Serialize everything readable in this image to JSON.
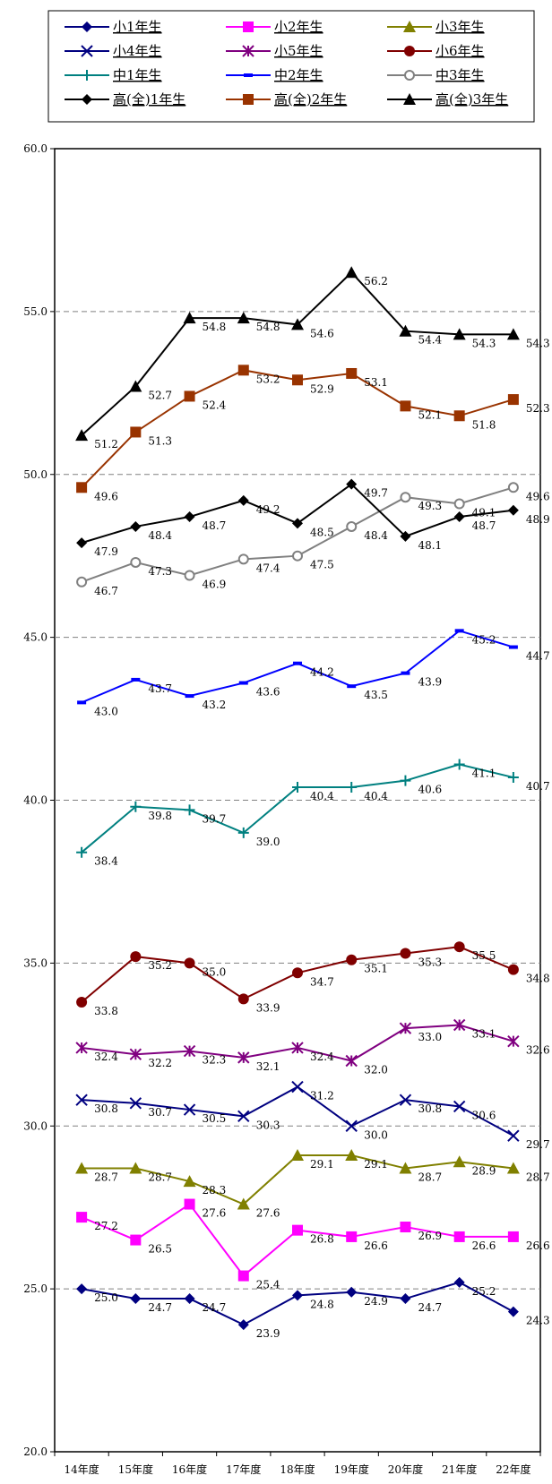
{
  "chart_data": {
    "type": "line",
    "categories": [
      "14年度",
      "15年度",
      "16年度",
      "17年度",
      "18年度",
      "19年度",
      "20年度",
      "21年度",
      "22年度"
    ],
    "ylim": [
      20.0,
      60.0
    ],
    "yticks": [
      "20.0",
      "25.0",
      "30.0",
      "35.0",
      "40.0",
      "45.0",
      "50.0",
      "55.0",
      "60.0"
    ],
    "grid": "dashed-horizontal",
    "legend_position": "top",
    "series": [
      {
        "name": "小1年生",
        "color": "#000080",
        "marker": "diamond",
        "values": [
          25.0,
          24.7,
          24.7,
          23.9,
          24.8,
          24.9,
          24.7,
          25.2,
          24.3
        ],
        "labels": [
          "25.0",
          "24.7",
          "24.7",
          "23.9",
          "24.8",
          "24.9",
          "24.7",
          "25.2",
          "24.3"
        ]
      },
      {
        "name": "小2年生",
        "color": "#ff00ff",
        "marker": "square",
        "values": [
          27.2,
          26.5,
          27.6,
          25.4,
          26.8,
          26.6,
          26.9,
          26.6,
          26.6
        ],
        "labels": [
          "27.2",
          "26.5",
          "27.6",
          "25.4",
          "26.8",
          "26.6",
          "26.9",
          "26.6",
          "26.6"
        ]
      },
      {
        "name": "小3年生",
        "color": "#808000",
        "marker": "triangle",
        "values": [
          28.7,
          28.7,
          28.3,
          27.6,
          29.1,
          29.1,
          28.7,
          28.9,
          28.7
        ],
        "labels": [
          "28.7",
          "28.7",
          "28.3",
          "27.6",
          "29.1",
          "29.1",
          "28.7",
          "28.9",
          "28.7"
        ]
      },
      {
        "name": "小4年生",
        "color": "#000080",
        "marker": "x",
        "values": [
          30.8,
          30.7,
          30.5,
          30.3,
          31.2,
          30.0,
          30.8,
          30.6,
          29.7
        ],
        "labels": [
          "30.8",
          "30.7",
          "30.5",
          "30.3",
          "31.2",
          "30.0",
          "30.8",
          "30.6",
          "29.7"
        ]
      },
      {
        "name": "小5年生",
        "color": "#800080",
        "marker": "star",
        "values": [
          32.4,
          32.2,
          32.3,
          32.1,
          32.4,
          32.0,
          33.0,
          33.1,
          32.6
        ],
        "labels": [
          "32.4",
          "32.2",
          "32.3",
          "32.1",
          "32.4",
          "32.0",
          "33.0",
          "33.1",
          "32.6"
        ]
      },
      {
        "name": "小6年生",
        "color": "#800000",
        "marker": "circle",
        "values": [
          33.8,
          35.2,
          35.0,
          33.9,
          34.7,
          35.1,
          35.3,
          35.5,
          34.8
        ],
        "labels": [
          "33.8",
          "35.2",
          "35.0",
          "33.9",
          "34.7",
          "35.1",
          "35.3",
          "35.5",
          "34.8"
        ]
      },
      {
        "name": "中1年生",
        "color": "#008080",
        "marker": "plus",
        "values": [
          38.4,
          39.8,
          39.7,
          39.0,
          40.4,
          40.4,
          40.6,
          41.1,
          40.7
        ],
        "labels": [
          "38.4",
          "39.8",
          "39.7",
          "39.0",
          "40.4",
          "40.4",
          "40.6",
          "41.1",
          "40.7"
        ]
      },
      {
        "name": "中2年生",
        "color": "#0000ff",
        "marker": "dash",
        "values": [
          43.0,
          43.7,
          43.2,
          43.6,
          44.2,
          43.5,
          43.9,
          45.2,
          44.7
        ],
        "labels": [
          "43.0",
          "43.7",
          "43.2",
          "43.6",
          "44.2",
          "43.5",
          "43.9",
          "45.2",
          "44.7"
        ]
      },
      {
        "name": "中3年生",
        "color": "#808080",
        "marker": "ocircle",
        "values": [
          46.7,
          47.3,
          46.9,
          47.4,
          47.5,
          48.4,
          49.3,
          49.1,
          49.6
        ],
        "labels": [
          "46.7",
          "47.3",
          "46.9",
          "47.4",
          "47.5",
          "48.4",
          "49.3",
          "49.1",
          "49.6"
        ]
      },
      {
        "name": "高(全)1年生",
        "color": "#000000",
        "marker": "diamond",
        "values": [
          47.9,
          48.4,
          48.7,
          49.2,
          48.5,
          49.7,
          48.1,
          48.7,
          48.9
        ],
        "labels": [
          "47.9",
          "48.4",
          "48.7",
          "49.2",
          "48.5",
          "49.7",
          "48.1",
          "48.7",
          "48.9"
        ]
      },
      {
        "name": "高(全)2年生",
        "color": "#993300",
        "marker": "square",
        "values": [
          49.6,
          51.3,
          52.4,
          53.2,
          52.9,
          53.1,
          52.1,
          51.8,
          52.3
        ],
        "labels": [
          "49.6",
          "51.3",
          "52.4",
          "53.2",
          "52.9",
          "53.1",
          "52.1",
          "51.8",
          "52.3"
        ]
      },
      {
        "name": "高(全)3年生",
        "color": "#000000",
        "marker": "triangle",
        "values": [
          51.2,
          52.7,
          54.8,
          54.8,
          54.6,
          56.2,
          54.4,
          54.3,
          54.3
        ],
        "labels": [
          "51.2",
          "52.7",
          "54.8",
          "54.8",
          "54.6",
          "56.2",
          "54.4",
          "54.3",
          "54.3"
        ]
      }
    ]
  }
}
